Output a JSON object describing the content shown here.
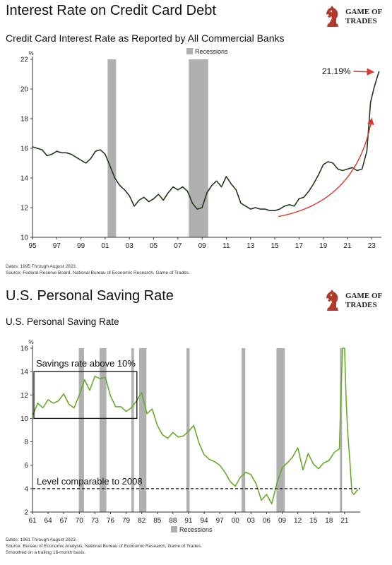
{
  "brand": {
    "line1": "GAME OF",
    "line2": "TRADES",
    "icon": "chess-knight-icon"
  },
  "chart_data": [
    {
      "type": "line",
      "title": "Interest Rate on Credit Card Debt",
      "subtitle": "Credit Card Interest Rate as Reported by All Commercial Banks",
      "ylabel": "%",
      "xlabel": "",
      "xlim": [
        1995,
        2023.8
      ],
      "ylim": [
        10,
        22
      ],
      "x_ticks": [
        1995,
        1997,
        1999,
        2001,
        2003,
        2005,
        2007,
        2009,
        2011,
        2013,
        2015,
        2017,
        2019,
        2021,
        2023
      ],
      "x_tick_labels": [
        "95",
        "97",
        "99",
        "01",
        "03",
        "05",
        "07",
        "09",
        "11",
        "13",
        "15",
        "17",
        "19",
        "21",
        "23"
      ],
      "y_ticks": [
        10,
        12,
        14,
        16,
        18,
        20,
        22
      ],
      "y_tick_labels": [
        "10",
        "12",
        "14",
        "16",
        "18",
        "20",
        "22"
      ],
      "grid": false,
      "line_color": "#1f3a16",
      "legend": {
        "label": "Recessions",
        "position": "top-center",
        "color": "#b0b0b0"
      },
      "recessions": [
        [
          2001.2,
          2001.9
        ],
        [
          2007.9,
          2009.5
        ]
      ],
      "annotation": {
        "text": "21.19%",
        "color": "#d63a2a"
      },
      "series": [
        {
          "x": [
            1995,
            1995.4,
            1995.8,
            1996.2,
            1996.6,
            1997,
            1997.4,
            1997.8,
            1998.2,
            1998.6,
            1999,
            1999.4,
            1999.8,
            2000.2,
            2000.6,
            2001,
            2001.4,
            2001.8,
            2002.2,
            2002.6,
            2003,
            2003.4,
            2003.8,
            2004.2,
            2004.6,
            2005,
            2005.4,
            2005.8,
            2006.2,
            2006.6,
            2007,
            2007.4,
            2007.8,
            2008.2,
            2008.6,
            2009,
            2009.4,
            2009.8,
            2010.2,
            2010.6,
            2011,
            2011.4,
            2011.8,
            2012.2,
            2012.6,
            2013,
            2013.4,
            2013.8,
            2014.2,
            2014.6,
            2015,
            2015.4,
            2015.8,
            2016.2,
            2016.6,
            2017,
            2017.4,
            2017.8,
            2018.2,
            2018.6,
            2019,
            2019.4,
            2019.8,
            2020.2,
            2020.6,
            2021,
            2021.4,
            2021.8,
            2022.2,
            2022.6,
            2022.9,
            2023.2,
            2023.6
          ],
          "y": [
            16.1,
            16.0,
            15.9,
            15.5,
            15.6,
            15.8,
            15.7,
            15.7,
            15.6,
            15.4,
            15.2,
            15.0,
            15.3,
            15.8,
            15.9,
            15.6,
            14.8,
            14.0,
            13.5,
            13.2,
            12.8,
            12.1,
            12.5,
            12.7,
            12.4,
            12.6,
            12.9,
            12.5,
            13.0,
            13.4,
            13.2,
            13.4,
            13.1,
            12.3,
            11.9,
            12.0,
            13.0,
            13.5,
            13.8,
            13.4,
            14.1,
            13.6,
            13.2,
            12.3,
            12.1,
            11.9,
            12.0,
            11.9,
            11.9,
            11.8,
            11.8,
            11.9,
            12.1,
            12.2,
            12.1,
            12.6,
            12.7,
            13.1,
            13.6,
            14.2,
            14.9,
            15.1,
            15.0,
            14.6,
            14.5,
            14.6,
            14.7,
            14.5,
            14.6,
            15.8,
            19.1,
            20.1,
            21.19
          ]
        }
      ],
      "notes": [
        "Dates: 1995 Through August 2023.",
        "Source: Federal Reserve Board, National Bureau of Economic Research, Game of Trades."
      ]
    },
    {
      "type": "line",
      "title": "U.S. Personal Saving Rate",
      "subtitle": "U.S. Personal Saving Rate",
      "ylabel": "%",
      "xlabel": "",
      "xlim": [
        1961,
        2024
      ],
      "ylim": [
        2,
        16
      ],
      "x_ticks": [
        1961,
        1964,
        1967,
        1970,
        1973,
        1976,
        1979,
        1982,
        1985,
        1988,
        1991,
        1994,
        1997,
        2000,
        2003,
        2006,
        2009,
        2012,
        2015,
        2018,
        2021
      ],
      "x_tick_labels": [
        "61",
        "64",
        "67",
        "70",
        "73",
        "76",
        "79",
        "82",
        "85",
        "88",
        "91",
        "94",
        "97",
        "00",
        "03",
        "06",
        "09",
        "12",
        "15",
        "18",
        "21"
      ],
      "y_ticks": [
        2,
        4,
        6,
        8,
        10,
        12,
        14,
        16
      ],
      "y_tick_labels": [
        "2",
        "4",
        "6",
        "8",
        "10",
        "12",
        "14",
        "16"
      ],
      "grid": false,
      "line_color": "#6aaa2a",
      "legend": {
        "label": "Recessions",
        "position": "bottom-center",
        "color": "#b0b0b0"
      },
      "recessions": [
        [
          1969.9,
          1970.9
        ],
        [
          1973.9,
          1975.2
        ],
        [
          1980.0,
          1980.5
        ],
        [
          1981.5,
          1982.9
        ],
        [
          1990.6,
          1991.2
        ],
        [
          2001.2,
          2001.9
        ],
        [
          2007.9,
          2009.5
        ],
        [
          2020.1,
          2020.4
        ]
      ],
      "annotations": [
        {
          "text": "Savings rate above 10%"
        },
        {
          "text": "Level comparable to 2008",
          "y": 4
        }
      ],
      "highlight_box": {
        "x": [
          1961,
          1980.8
        ],
        "y": [
          10,
          14
        ]
      },
      "series": [
        {
          "x": [
            1961,
            1962,
            1963,
            1964,
            1965,
            1966,
            1967,
            1968,
            1969,
            1970,
            1971,
            1972,
            1973,
            1974,
            1975,
            1976,
            1977,
            1978,
            1979,
            1980,
            1981,
            1982,
            1983,
            1984,
            1985,
            1986,
            1987,
            1988,
            1989,
            1990,
            1991,
            1992,
            1993,
            1994,
            1995,
            1996,
            1997,
            1998,
            1999,
            2000,
            2001,
            2002,
            2003,
            2004,
            2005,
            2006,
            2007,
            2008,
            2009,
            2010,
            2011,
            2012,
            2013,
            2014,
            2015,
            2016,
            2017,
            2018,
            2019,
            2020,
            2020.3,
            2020.6,
            2021,
            2021.3,
            2021.6,
            2022,
            2022.4,
            2022.8,
            2023.3,
            2023.6
          ],
          "y": [
            10.2,
            11.3,
            10.9,
            11.6,
            11.3,
            11.5,
            12.1,
            11.2,
            10.9,
            12.0,
            13.3,
            12.4,
            13.6,
            13.4,
            13.5,
            11.9,
            11.0,
            11.0,
            10.6,
            10.9,
            11.5,
            12.2,
            10.4,
            10.8,
            9.4,
            8.6,
            8.3,
            8.8,
            8.4,
            8.5,
            8.9,
            9.4,
            7.9,
            6.9,
            6.5,
            6.3,
            6.0,
            5.4,
            4.6,
            4.2,
            5.0,
            5.4,
            5.2,
            4.4,
            3.0,
            3.5,
            2.7,
            4.5,
            5.8,
            6.2,
            6.7,
            7.5,
            5.6,
            7.0,
            6.1,
            5.7,
            6.2,
            6.4,
            7.1,
            7.4,
            12.0,
            16.0,
            16.0,
            11.5,
            8.8,
            6.4,
            3.7,
            3.5,
            3.8,
            3.9
          ]
        }
      ],
      "notes": [
        "Dates: 1961 Through August 2023.",
        "Source: Bureau of Economic Analysis, National Bureau of Economic Research, Game of Trades.",
        "Smoothed on a trailing 16-month basis."
      ]
    }
  ]
}
